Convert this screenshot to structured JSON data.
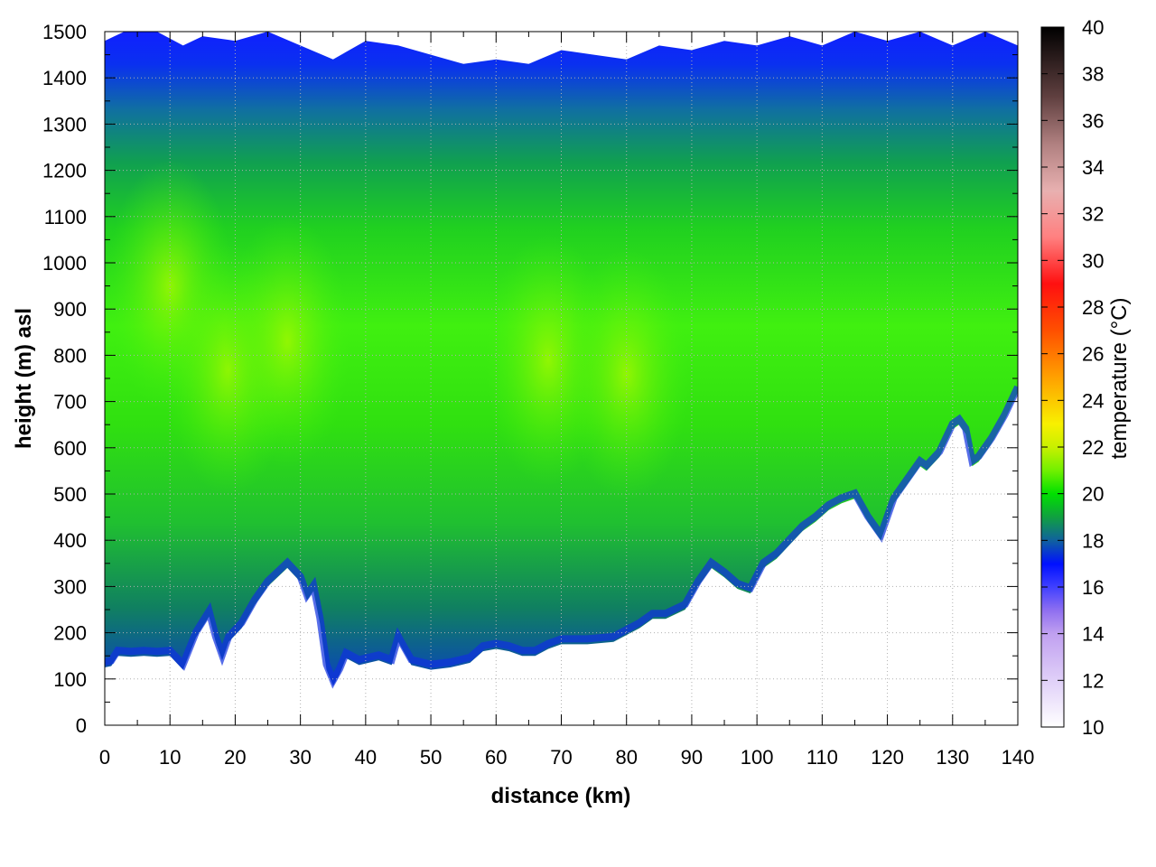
{
  "chart_data": {
    "type": "heatmap",
    "title": "",
    "xlabel": "distance (km)",
    "ylabel": "height (m) asl",
    "xlim": [
      0,
      140
    ],
    "ylim": [
      0,
      1500
    ],
    "x_ticks": [
      "0",
      "10",
      "20",
      "30",
      "40",
      "50",
      "60",
      "70",
      "80",
      "90",
      "100",
      "110",
      "120",
      "130",
      "140"
    ],
    "y_ticks": [
      "0",
      "100",
      "200",
      "300",
      "400",
      "500",
      "600",
      "700",
      "800",
      "900",
      "1000",
      "1100",
      "1200",
      "1300",
      "1400",
      "1500"
    ],
    "grid": "on (dotted)",
    "colorbar": {
      "label": "temperature (°C)",
      "range": [
        10,
        40
      ],
      "ticks": [
        "10",
        "12",
        "14",
        "16",
        "18",
        "20",
        "22",
        "24",
        "26",
        "28",
        "30",
        "32",
        "34",
        "36",
        "38",
        "40"
      ],
      "placement": "right",
      "colors": [
        "#ffffff",
        "#e0d0f8",
        "#c0a0f0",
        "#9070f0",
        "#4040ff",
        "#0010ff",
        "#1060a0",
        "#10a040",
        "#00e000",
        "#90f000",
        "#f8f000",
        "#ffb000",
        "#ff6000",
        "#ff1010",
        "#ff9090",
        "#e8b0b0",
        "#b08080",
        "#604040",
        "#000000"
      ]
    },
    "terrain_km_m": [
      [
        0,
        125
      ],
      [
        1,
        128
      ],
      [
        2,
        150
      ],
      [
        4,
        148
      ],
      [
        6,
        150
      ],
      [
        8,
        148
      ],
      [
        10,
        150
      ],
      [
        12,
        120
      ],
      [
        14,
        190
      ],
      [
        16,
        235
      ],
      [
        17,
        180
      ],
      [
        18,
        140
      ],
      [
        19,
        180
      ],
      [
        21,
        210
      ],
      [
        23,
        260
      ],
      [
        25,
        300
      ],
      [
        28,
        340
      ],
      [
        30,
        310
      ],
      [
        31,
        270
      ],
      [
        32,
        290
      ],
      [
        33,
        220
      ],
      [
        34,
        120
      ],
      [
        35,
        85
      ],
      [
        36,
        110
      ],
      [
        37,
        145
      ],
      [
        39,
        130
      ],
      [
        42,
        140
      ],
      [
        44,
        130
      ],
      [
        45,
        180
      ],
      [
        47,
        130
      ],
      [
        50,
        120
      ],
      [
        53,
        125
      ],
      [
        56,
        135
      ],
      [
        58,
        160
      ],
      [
        60,
        165
      ],
      [
        62,
        160
      ],
      [
        64,
        150
      ],
      [
        66,
        150
      ],
      [
        68,
        165
      ],
      [
        70,
        175
      ],
      [
        74,
        175
      ],
      [
        78,
        180
      ],
      [
        82,
        210
      ],
      [
        84,
        230
      ],
      [
        86,
        230
      ],
      [
        89,
        250
      ],
      [
        91,
        300
      ],
      [
        93,
        340
      ],
      [
        95,
        320
      ],
      [
        97,
        295
      ],
      [
        99,
        285
      ],
      [
        101,
        340
      ],
      [
        103,
        360
      ],
      [
        105,
        390
      ],
      [
        107,
        420
      ],
      [
        109,
        440
      ],
      [
        111,
        465
      ],
      [
        113,
        480
      ],
      [
        115,
        490
      ],
      [
        117,
        440
      ],
      [
        119,
        400
      ],
      [
        121,
        480
      ],
      [
        123,
        520
      ],
      [
        125,
        560
      ],
      [
        126,
        550
      ],
      [
        128,
        580
      ],
      [
        130,
        640
      ],
      [
        131,
        650
      ],
      [
        132,
        630
      ],
      [
        133,
        560
      ],
      [
        134,
        570
      ],
      [
        136,
        610
      ],
      [
        138,
        660
      ],
      [
        140,
        720
      ]
    ],
    "top_edge_km_m": [
      [
        0,
        1480
      ],
      [
        3,
        1500
      ],
      [
        8,
        1500
      ],
      [
        12,
        1470
      ],
      [
        15,
        1490
      ],
      [
        20,
        1480
      ],
      [
        25,
        1500
      ],
      [
        30,
        1470
      ],
      [
        35,
        1440
      ],
      [
        40,
        1480
      ],
      [
        45,
        1470
      ],
      [
        50,
        1450
      ],
      [
        55,
        1430
      ],
      [
        60,
        1440
      ],
      [
        65,
        1430
      ],
      [
        70,
        1460
      ],
      [
        75,
        1450
      ],
      [
        80,
        1440
      ],
      [
        85,
        1470
      ],
      [
        90,
        1460
      ],
      [
        95,
        1480
      ],
      [
        100,
        1470
      ],
      [
        105,
        1490
      ],
      [
        110,
        1470
      ],
      [
        115,
        1500
      ],
      [
        120,
        1480
      ],
      [
        125,
        1500
      ],
      [
        130,
        1470
      ],
      [
        135,
        1500
      ],
      [
        140,
        1470
      ]
    ],
    "warm_cores_km_m": [
      [
        10,
        950
      ],
      [
        19,
        770
      ],
      [
        28,
        830
      ],
      [
        68,
        790
      ],
      [
        80,
        760
      ]
    ]
  }
}
